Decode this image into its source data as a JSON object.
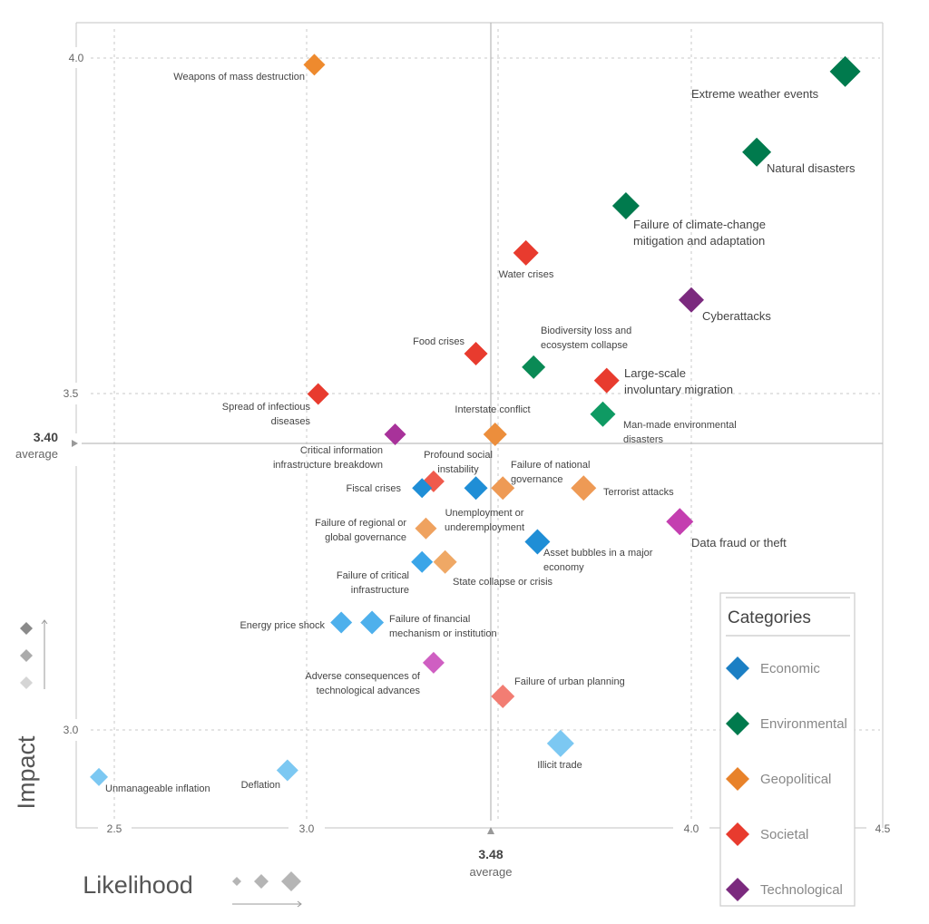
{
  "chart_data": {
    "type": "scatter",
    "title": "",
    "xlabel": "Likelihood",
    "ylabel": "Impact",
    "xlim": [
      2.4,
      4.5
    ],
    "ylim": [
      2.85,
      4.05
    ],
    "x_ticks": [
      "2.5",
      "3.0",
      "4.0",
      "4.5"
    ],
    "y_ticks": [
      "4.0",
      "3.5",
      "3.0"
    ],
    "grid": true,
    "averages": {
      "x": {
        "value": "3.48",
        "label": "average"
      },
      "y": {
        "value": "3.40",
        "label": "average"
      }
    },
    "legend": {
      "title": "Categories",
      "placement": "bottom-right",
      "items": [
        {
          "name": "Economic",
          "color": "#1b7fc4"
        },
        {
          "name": "Environmental",
          "color": "#007a4d"
        },
        {
          "name": "Geopolitical",
          "color": "#e8822a"
        },
        {
          "name": "Societal",
          "color": "#e83b2e"
        },
        {
          "name": "Technological",
          "color": "#7b2a7e"
        }
      ]
    },
    "points": [
      {
        "label": "Weapons of mass destruction",
        "category": "Geopolitical",
        "x": 3.02,
        "y": 3.99,
        "color": "#ee8a2e"
      },
      {
        "label": "Extreme weather events",
        "category": "Environmental",
        "x": 4.4,
        "y": 3.98,
        "color": "#007a4d"
      },
      {
        "label": "Natural disasters",
        "category": "Environmental",
        "x": 4.17,
        "y": 3.86,
        "color": "#007a4d"
      },
      {
        "label": "Failure of climate-change mitigation and adaptation",
        "category": "Environmental",
        "x": 3.83,
        "y": 3.78,
        "color": "#007a4d"
      },
      {
        "label": "Water crises",
        "category": "Societal",
        "x": 3.57,
        "y": 3.71,
        "color": "#e83b2e"
      },
      {
        "label": "Cyberattacks",
        "category": "Technological",
        "x": 4.0,
        "y": 3.64,
        "color": "#7b2a7e"
      },
      {
        "label": "Food crises",
        "category": "Societal",
        "x": 3.44,
        "y": 3.56,
        "color": "#e83b2e"
      },
      {
        "label": "Biodiversity loss and ecosystem collapse",
        "category": "Environmental",
        "x": 3.59,
        "y": 3.54,
        "color": "#0a8a55"
      },
      {
        "label": "Large-scale involuntary migration",
        "category": "Societal",
        "x": 3.78,
        "y": 3.52,
        "color": "#e83b2e"
      },
      {
        "label": "Spread of infectious diseases",
        "category": "Societal",
        "x": 3.03,
        "y": 3.5,
        "color": "#e83b2e"
      },
      {
        "label": "Interstate conflict",
        "category": "Geopolitical",
        "x": 3.49,
        "y": 3.44,
        "color": "#ec8e3c"
      },
      {
        "label": "Man-made environmental disasters",
        "category": "Environmental",
        "x": 3.77,
        "y": 3.47,
        "color": "#0f9a63"
      },
      {
        "label": "Critical information infrastructure breakdown",
        "category": "Technological",
        "x": 3.23,
        "y": 3.44,
        "color": "#a8329a"
      },
      {
        "label": "Profound social instability",
        "category": "Societal",
        "x": 3.33,
        "y": 3.37,
        "color": "#ef5a4c"
      },
      {
        "label": "Fiscal crises",
        "category": "Economic",
        "x": 3.3,
        "y": 3.36,
        "color": "#1f8ed6"
      },
      {
        "label": "Unemployment or underemployment",
        "category": "Economic",
        "x": 3.44,
        "y": 3.36,
        "color": "#1f8ed6"
      },
      {
        "label": "Failure of national governance",
        "category": "Geopolitical",
        "x": 3.51,
        "y": 3.36,
        "color": "#ee9a55"
      },
      {
        "label": "Terrorist attacks",
        "category": "Geopolitical",
        "x": 3.72,
        "y": 3.36,
        "color": "#ee9a55"
      },
      {
        "label": "Failure of regional or global governance",
        "category": "Geopolitical",
        "x": 3.31,
        "y": 3.3,
        "color": "#efa25f"
      },
      {
        "label": "Data fraud or theft",
        "category": "Technological",
        "x": 3.97,
        "y": 3.31,
        "color": "#c43fb0"
      },
      {
        "label": "Asset bubbles in a major economy",
        "category": "Economic",
        "x": 3.6,
        "y": 3.28,
        "color": "#1f8ed6"
      },
      {
        "label": "Failure of critical infrastructure",
        "category": "Economic",
        "x": 3.3,
        "y": 3.25,
        "color": "#3aa5e8"
      },
      {
        "label": "State collapse or crisis",
        "category": "Geopolitical",
        "x": 3.36,
        "y": 3.25,
        "color": "#efa865"
      },
      {
        "label": "Energy price shock",
        "category": "Economic",
        "x": 3.09,
        "y": 3.16,
        "color": "#4eb0ec"
      },
      {
        "label": "Failure of financial mechanism or institution",
        "category": "Economic",
        "x": 3.17,
        "y": 3.16,
        "color": "#4eb0ec"
      },
      {
        "label": "Adverse consequences of technological advances",
        "category": "Technological",
        "x": 3.33,
        "y": 3.1,
        "color": "#cf5fc2"
      },
      {
        "label": "Failure of urban planning",
        "category": "Societal",
        "x": 3.51,
        "y": 3.05,
        "color": "#f27d73"
      },
      {
        "label": "Illicit trade",
        "category": "Economic",
        "x": 3.66,
        "y": 2.98,
        "color": "#7cc8f2"
      },
      {
        "label": "Unmanageable inflation",
        "category": "Economic",
        "x": 2.46,
        "y": 2.93,
        "color": "#7cc8f2"
      },
      {
        "label": "Deflation",
        "category": "Economic",
        "x": 2.95,
        "y": 2.94,
        "color": "#7cc8f2"
      }
    ]
  }
}
